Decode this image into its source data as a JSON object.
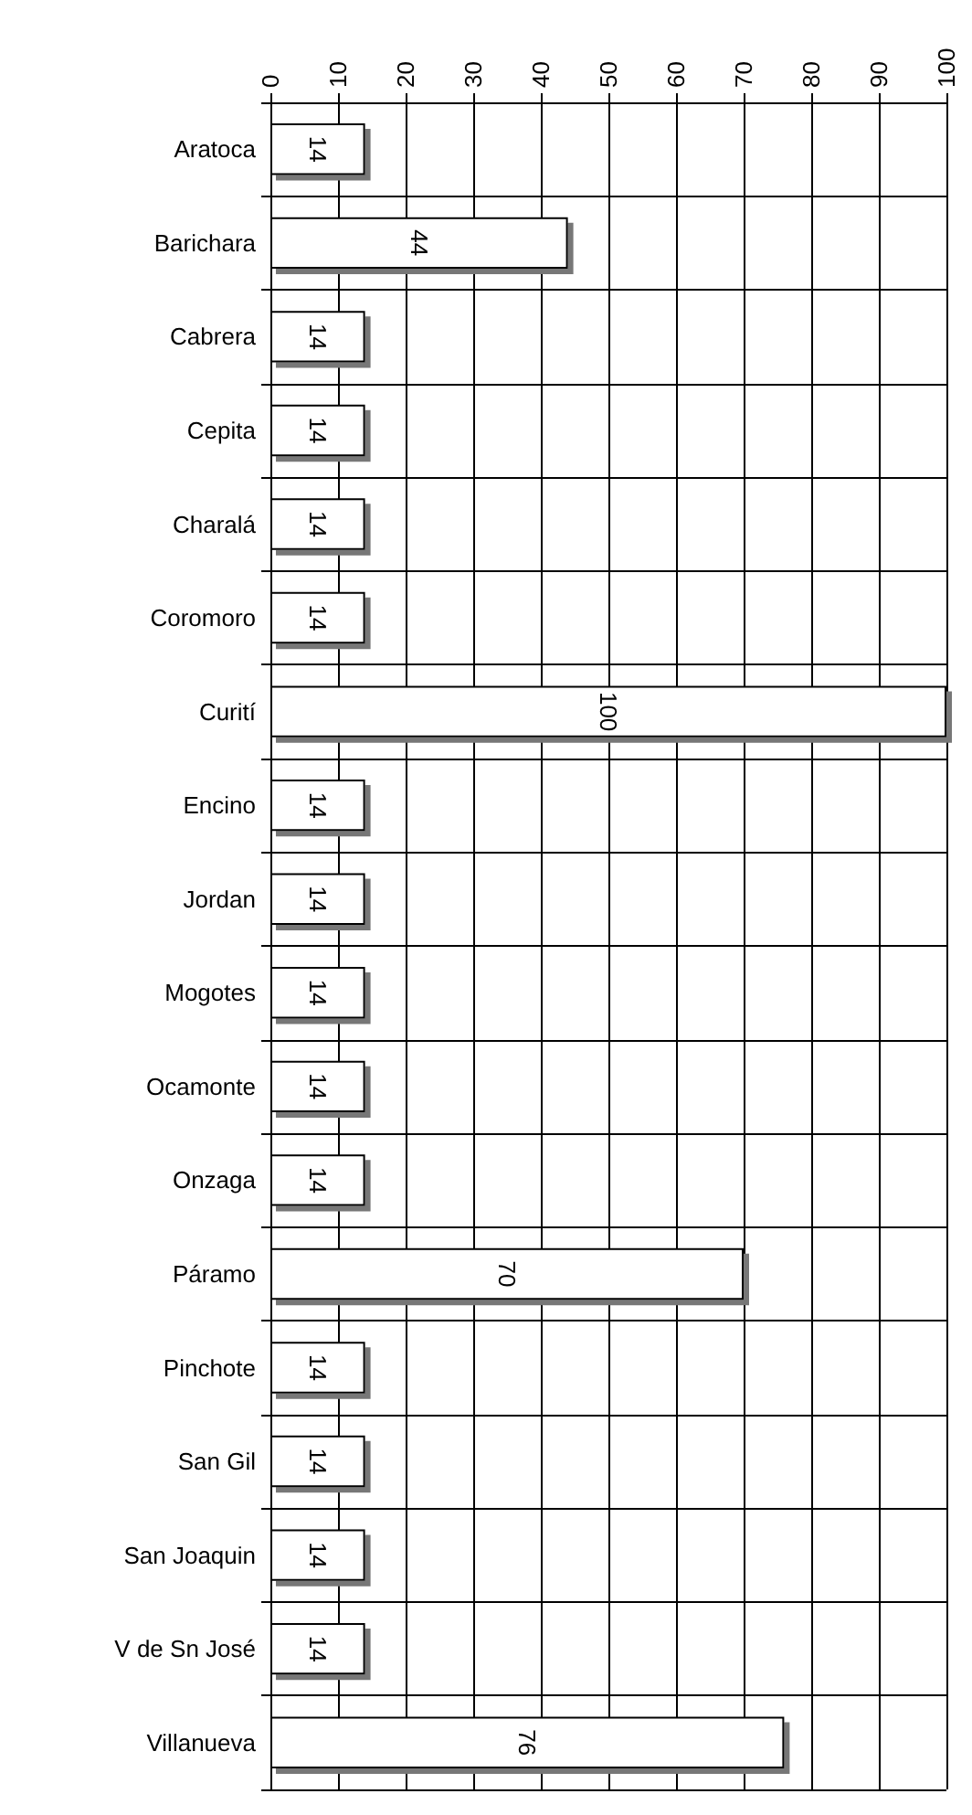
{
  "chart_data": {
    "type": "bar",
    "orientation": "horizontal",
    "categories": [
      "Aratoca",
      "Barichara",
      "Cabrera",
      "Cepita",
      "Charalá",
      "Coromoro",
      "Curití",
      "Encino",
      "Jordan",
      "Mogotes",
      "Ocamonte",
      "Onzaga",
      "Páramo",
      "Pinchote",
      "San Gil",
      "San Joaquin",
      "V de Sn José",
      "Villanueva"
    ],
    "values": [
      14,
      44,
      14,
      14,
      14,
      14,
      100,
      14,
      14,
      14,
      14,
      14,
      70,
      14,
      14,
      14,
      14,
      76
    ],
    "color": "#ffffff",
    "xlim": [
      0,
      100
    ],
    "xticks": [
      0,
      10,
      20,
      30,
      40,
      50,
      60,
      70,
      80,
      90,
      100
    ],
    "grid": true,
    "data_labels": true
  }
}
